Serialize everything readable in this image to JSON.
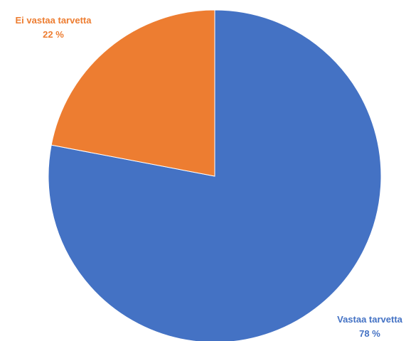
{
  "chart_data": {
    "type": "pie",
    "title": "",
    "slices": [
      {
        "label": "Vastaa tarvetta",
        "value": 78,
        "value_label": "78 %",
        "color": "#4472C4"
      },
      {
        "label": "Ei vastaa tarvetta",
        "value": 22,
        "value_label": "22 %",
        "color": "#ED7D31"
      }
    ],
    "start_angle_deg": 0,
    "direction": "clockwise",
    "legend": "none",
    "data_labels": "outside"
  }
}
